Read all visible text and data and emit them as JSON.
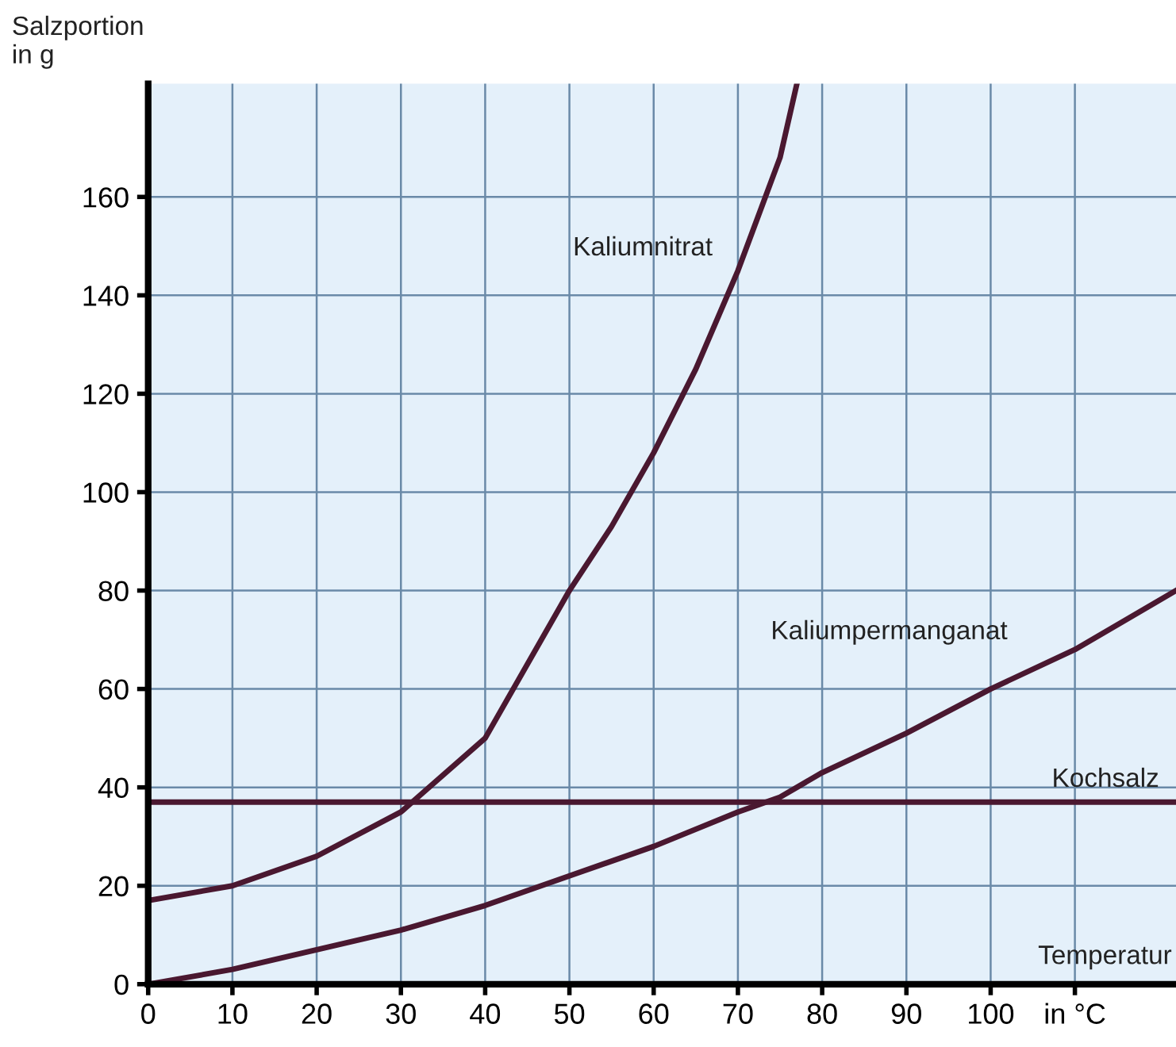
{
  "chart_data": {
    "type": "line",
    "xlabel": "Temperatur",
    "ylabel": "Salzportion\nin g",
    "xlim": [
      0,
      122
    ],
    "ylim": [
      0,
      183
    ],
    "xticks": [
      0,
      10,
      20,
      30,
      40,
      50,
      60,
      70,
      80,
      90,
      100,
      {
        "value": 110,
        "label": "in °C"
      }
    ],
    "yticks": [
      0,
      20,
      40,
      60,
      80,
      100,
      120,
      140,
      160
    ],
    "grid": true,
    "legend": false,
    "marker": "none",
    "line_style": "solid",
    "series": [
      {
        "name": "Kaliumnitrat",
        "color": "#4a1830",
        "x": [
          0,
          10,
          20,
          30,
          40,
          50,
          55,
          60,
          65,
          70,
          75,
          77
        ],
        "values": [
          17,
          20,
          26,
          35,
          50,
          80,
          93,
          108,
          125,
          145,
          168,
          183
        ]
      },
      {
        "name": "Kaliumpermanganat",
        "color": "#4a1830",
        "x": [
          0,
          10,
          20,
          30,
          40,
          50,
          60,
          70,
          75,
          80,
          90,
          100,
          110,
          122
        ],
        "values": [
          0,
          3,
          7,
          11,
          16,
          22,
          28,
          35,
          38,
          43,
          51,
          60,
          68,
          80
        ]
      },
      {
        "name": "Kochsalz",
        "color": "#4a1830",
        "x": [
          0,
          122
        ],
        "values": [
          37,
          37
        ]
      }
    ]
  }
}
